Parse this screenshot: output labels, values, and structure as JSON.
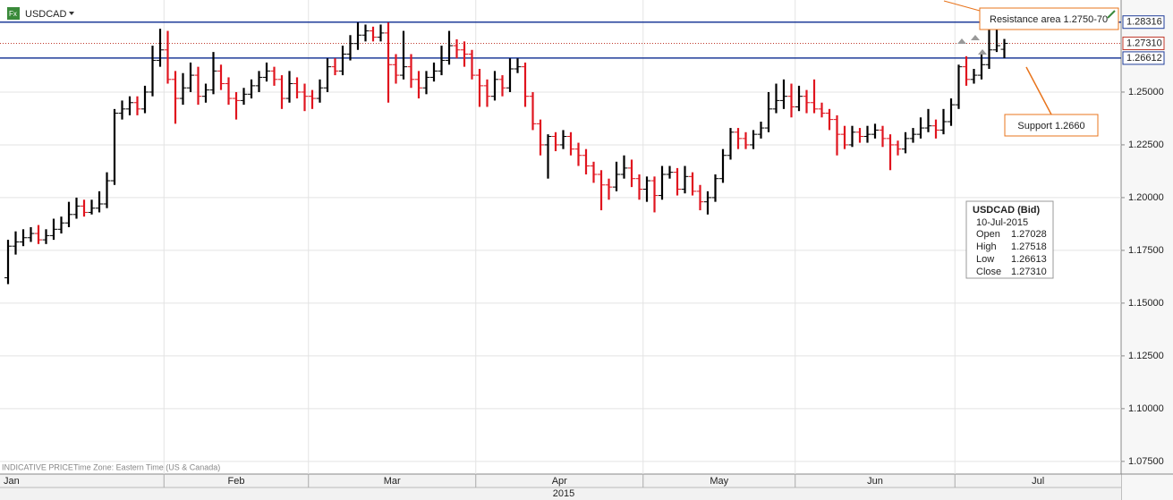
{
  "chart_data": {
    "type": "ohlc",
    "symbol": "USDCAD",
    "footer_note": "INDICATIVE PRICE",
    "time_zone": "Time Zone: Eastern Time (US & Canada)",
    "year_label": "2015",
    "up_color": "#000000",
    "down_color": "#e0141e",
    "grid": true,
    "ylim": [
      1.069,
      1.2894
    ],
    "yticks": [
      {
        "value": 1.075,
        "label": "1.07500"
      },
      {
        "value": 1.1,
        "label": "1.10000"
      },
      {
        "value": 1.125,
        "label": "1.12500"
      },
      {
        "value": 1.15,
        "label": "1.15000"
      },
      {
        "value": 1.175,
        "label": "1.17500"
      },
      {
        "value": 1.2,
        "label": "1.20000"
      },
      {
        "value": 1.225,
        "label": "1.22500"
      },
      {
        "value": 1.25,
        "label": "1.25000"
      }
    ],
    "levels": [
      {
        "value": 1.28316,
        "label": "1.28316",
        "color": "#1f3c99",
        "style": "solid"
      },
      {
        "value": 1.2731,
        "label": "1.27310",
        "color": "#c0392b",
        "style": "dotted"
      },
      {
        "value": 1.26612,
        "label": "1.26612",
        "color": "#1f3c99",
        "style": "solid"
      }
    ],
    "annotations": [
      {
        "text": "Resistance area 1.2750-70"
      },
      {
        "text": "Support 1.2660"
      }
    ],
    "info_box": {
      "title": "USDCAD (Bid)",
      "date": "10-Jul-2015",
      "rows": [
        {
          "label": "Open",
          "value": "1.27028"
        },
        {
          "label": "High",
          "value": "1.27518"
        },
        {
          "label": "Low",
          "value": "1.26613"
        },
        {
          "label": "Close",
          "value": "1.27310"
        }
      ]
    },
    "categories": [
      "Jan",
      null,
      null,
      null,
      null,
      null,
      null,
      null,
      null,
      null,
      null,
      null,
      null,
      null,
      null,
      null,
      null,
      null,
      null,
      null,
      null,
      "Feb",
      null,
      null,
      null,
      null,
      null,
      null,
      null,
      null,
      null,
      null,
      null,
      null,
      null,
      null,
      null,
      null,
      null,
      null,
      "Mar",
      null,
      null,
      null,
      null,
      null,
      null,
      null,
      null,
      null,
      null,
      null,
      null,
      null,
      null,
      null,
      null,
      null,
      null,
      null,
      null,
      null,
      "Apr",
      null,
      null,
      null,
      null,
      null,
      null,
      null,
      null,
      null,
      null,
      null,
      null,
      null,
      null,
      null,
      null,
      null,
      null,
      null,
      null,
      null,
      "May",
      null,
      null,
      null,
      null,
      null,
      null,
      null,
      null,
      null,
      null,
      null,
      null,
      null,
      null,
      null,
      null,
      null,
      null,
      null,
      "Jun",
      null,
      null,
      null,
      null,
      null,
      null,
      null,
      null,
      null,
      null,
      null,
      null,
      null,
      null,
      null,
      null,
      null,
      null,
      null,
      null,
      "Jul",
      null,
      null,
      null,
      null,
      null,
      null
    ],
    "values": [
      [
        1.162,
        1.18,
        1.159,
        1.177
      ],
      [
        1.177,
        1.184,
        1.173,
        1.179
      ],
      [
        1.179,
        1.185,
        1.177,
        1.181
      ],
      [
        1.181,
        1.186,
        1.179,
        1.183
      ],
      [
        1.183,
        1.187,
        1.178,
        1.18
      ],
      [
        1.18,
        1.185,
        1.178,
        1.182
      ],
      [
        1.182,
        1.19,
        1.18,
        1.185
      ],
      [
        1.185,
        1.191,
        1.183,
        1.188
      ],
      [
        1.188,
        1.198,
        1.186,
        1.192
      ],
      [
        1.192,
        1.2,
        1.19,
        1.196
      ],
      [
        1.196,
        1.199,
        1.191,
        1.193
      ],
      [
        1.193,
        1.199,
        1.192,
        1.195
      ],
      [
        1.195,
        1.203,
        1.193,
        1.197
      ],
      [
        1.197,
        1.212,
        1.195,
        1.208
      ],
      [
        1.208,
        1.242,
        1.206,
        1.24
      ],
      [
        1.24,
        1.246,
        1.237,
        1.242
      ],
      [
        1.242,
        1.248,
        1.239,
        1.245
      ],
      [
        1.245,
        1.248,
        1.239,
        1.242
      ],
      [
        1.242,
        1.253,
        1.24,
        1.25
      ],
      [
        1.25,
        1.272,
        1.248,
        1.265
      ],
      [
        1.265,
        1.28,
        1.262,
        1.27
      ],
      [
        1.27,
        1.279,
        1.254,
        1.256
      ],
      [
        1.256,
        1.26,
        1.235,
        1.247
      ],
      [
        1.247,
        1.259,
        1.244,
        1.252
      ],
      [
        1.252,
        1.264,
        1.25,
        1.258
      ],
      [
        1.258,
        1.262,
        1.244,
        1.248
      ],
      [
        1.248,
        1.254,
        1.245,
        1.251
      ],
      [
        1.251,
        1.269,
        1.249,
        1.26
      ],
      [
        1.26,
        1.263,
        1.251,
        1.254
      ],
      [
        1.254,
        1.257,
        1.244,
        1.247
      ],
      [
        1.247,
        1.25,
        1.237,
        1.246
      ],
      [
        1.246,
        1.252,
        1.244,
        1.249
      ],
      [
        1.249,
        1.256,
        1.247,
        1.253
      ],
      [
        1.253,
        1.26,
        1.25,
        1.257
      ],
      [
        1.257,
        1.264,
        1.255,
        1.26
      ],
      [
        1.26,
        1.262,
        1.253,
        1.256
      ],
      [
        1.256,
        1.258,
        1.242,
        1.247
      ],
      [
        1.247,
        1.26,
        1.245,
        1.254
      ],
      [
        1.254,
        1.257,
        1.247,
        1.25
      ],
      [
        1.25,
        1.254,
        1.241,
        1.248
      ],
      [
        1.248,
        1.251,
        1.242,
        1.247
      ],
      [
        1.247,
        1.256,
        1.245,
        1.252
      ],
      [
        1.252,
        1.266,
        1.25,
        1.262
      ],
      [
        1.262,
        1.266,
        1.258,
        1.26
      ],
      [
        1.26,
        1.272,
        1.258,
        1.268
      ],
      [
        1.268,
        1.277,
        1.265,
        1.273
      ],
      [
        1.273,
        1.283,
        1.27,
        1.277
      ],
      [
        1.277,
        1.282,
        1.274,
        1.279
      ],
      [
        1.279,
        1.281,
        1.274,
        1.276
      ],
      [
        1.276,
        1.282,
        1.274,
        1.278
      ],
      [
        1.278,
        1.283,
        1.245,
        1.263
      ],
      [
        1.263,
        1.268,
        1.254,
        1.258
      ],
      [
        1.258,
        1.279,
        1.256,
        1.262
      ],
      [
        1.262,
        1.268,
        1.252,
        1.256
      ],
      [
        1.256,
        1.26,
        1.247,
        1.252
      ],
      [
        1.252,
        1.26,
        1.249,
        1.257
      ],
      [
        1.257,
        1.264,
        1.255,
        1.26
      ],
      [
        1.26,
        1.272,
        1.258,
        1.265
      ],
      [
        1.265,
        1.279,
        1.263,
        1.272
      ],
      [
        1.272,
        1.275,
        1.266,
        1.27
      ],
      [
        1.27,
        1.274,
        1.262,
        1.268
      ],
      [
        1.268,
        1.27,
        1.256,
        1.258
      ],
      [
        1.258,
        1.261,
        1.243,
        1.253
      ],
      [
        1.253,
        1.256,
        1.243,
        1.248
      ],
      [
        1.248,
        1.26,
        1.246,
        1.256
      ],
      [
        1.256,
        1.258,
        1.248,
        1.252
      ],
      [
        1.252,
        1.266,
        1.25,
        1.261
      ],
      [
        1.261,
        1.266,
        1.259,
        1.262
      ],
      [
        1.262,
        1.264,
        1.243,
        1.248
      ],
      [
        1.248,
        1.25,
        1.232,
        1.235
      ],
      [
        1.235,
        1.237,
        1.22,
        1.225
      ],
      [
        1.225,
        1.23,
        1.209,
        1.229
      ],
      [
        1.229,
        1.231,
        1.222,
        1.225
      ],
      [
        1.225,
        1.232,
        1.223,
        1.229
      ],
      [
        1.229,
        1.231,
        1.22,
        1.223
      ],
      [
        1.223,
        1.226,
        1.215,
        1.22
      ],
      [
        1.22,
        1.223,
        1.211,
        1.215
      ],
      [
        1.215,
        1.217,
        1.207,
        1.211
      ],
      [
        1.211,
        1.213,
        1.194,
        1.206
      ],
      [
        1.206,
        1.209,
        1.199,
        1.205
      ],
      [
        1.205,
        1.217,
        1.203,
        1.211
      ],
      [
        1.211,
        1.22,
        1.209,
        1.214
      ],
      [
        1.214,
        1.218,
        1.205,
        1.209
      ],
      [
        1.209,
        1.211,
        1.199,
        1.204
      ],
      [
        1.204,
        1.21,
        1.198,
        1.208
      ],
      [
        1.208,
        1.21,
        1.193,
        1.201
      ],
      [
        1.201,
        1.215,
        1.199,
        1.211
      ],
      [
        1.211,
        1.215,
        1.209,
        1.212
      ],
      [
        1.212,
        1.214,
        1.201,
        1.204
      ],
      [
        1.204,
        1.215,
        1.202,
        1.21
      ],
      [
        1.21,
        1.212,
        1.201,
        1.203
      ],
      [
        1.203,
        1.206,
        1.194,
        1.198
      ],
      [
        1.198,
        1.203,
        1.192,
        1.2
      ],
      [
        1.2,
        1.211,
        1.198,
        1.209
      ],
      [
        1.209,
        1.223,
        1.207,
        1.22
      ],
      [
        1.22,
        1.233,
        1.218,
        1.231
      ],
      [
        1.231,
        1.233,
        1.223,
        1.228
      ],
      [
        1.228,
        1.231,
        1.223,
        1.225
      ],
      [
        1.225,
        1.232,
        1.223,
        1.23
      ],
      [
        1.23,
        1.236,
        1.228,
        1.233
      ],
      [
        1.233,
        1.25,
        1.231,
        1.242
      ],
      [
        1.242,
        1.254,
        1.24,
        1.246
      ],
      [
        1.246,
        1.256,
        1.242,
        1.248
      ],
      [
        1.248,
        1.254,
        1.238,
        1.243
      ],
      [
        1.243,
        1.253,
        1.241,
        1.248
      ],
      [
        1.248,
        1.251,
        1.24,
        1.245
      ],
      [
        1.245,
        1.256,
        1.24,
        1.242
      ],
      [
        1.242,
        1.245,
        1.238,
        1.24
      ],
      [
        1.24,
        1.242,
        1.232,
        1.237
      ],
      [
        1.237,
        1.239,
        1.22,
        1.23
      ],
      [
        1.23,
        1.234,
        1.223,
        1.225
      ],
      [
        1.225,
        1.234,
        1.224,
        1.231
      ],
      [
        1.231,
        1.233,
        1.226,
        1.229
      ],
      [
        1.229,
        1.234,
        1.226,
        1.23
      ],
      [
        1.23,
        1.235,
        1.228,
        1.232
      ],
      [
        1.232,
        1.234,
        1.224,
        1.228
      ],
      [
        1.228,
        1.23,
        1.213,
        1.225
      ],
      [
        1.225,
        1.227,
        1.22,
        1.223
      ],
      [
        1.223,
        1.231,
        1.221,
        1.228
      ],
      [
        1.228,
        1.233,
        1.226,
        1.23
      ],
      [
        1.23,
        1.238,
        1.228,
        1.233
      ],
      [
        1.233,
        1.242,
        1.231,
        1.234
      ],
      [
        1.234,
        1.237,
        1.228,
        1.232
      ],
      [
        1.232,
        1.242,
        1.23,
        1.236
      ],
      [
        1.236,
        1.247,
        1.234,
        1.244
      ],
      [
        1.244,
        1.263,
        1.242,
        1.262
      ],
      [
        1.262,
        1.267,
        1.253,
        1.256
      ],
      [
        1.256,
        1.261,
        1.254,
        1.258
      ],
      [
        1.258,
        1.268,
        1.256,
        1.263
      ],
      [
        1.263,
        1.283,
        1.261,
        1.27
      ],
      [
        1.27,
        1.28,
        1.269,
        1.272
      ],
      [
        1.27028,
        1.27518,
        1.26613,
        1.2731
      ]
    ]
  }
}
